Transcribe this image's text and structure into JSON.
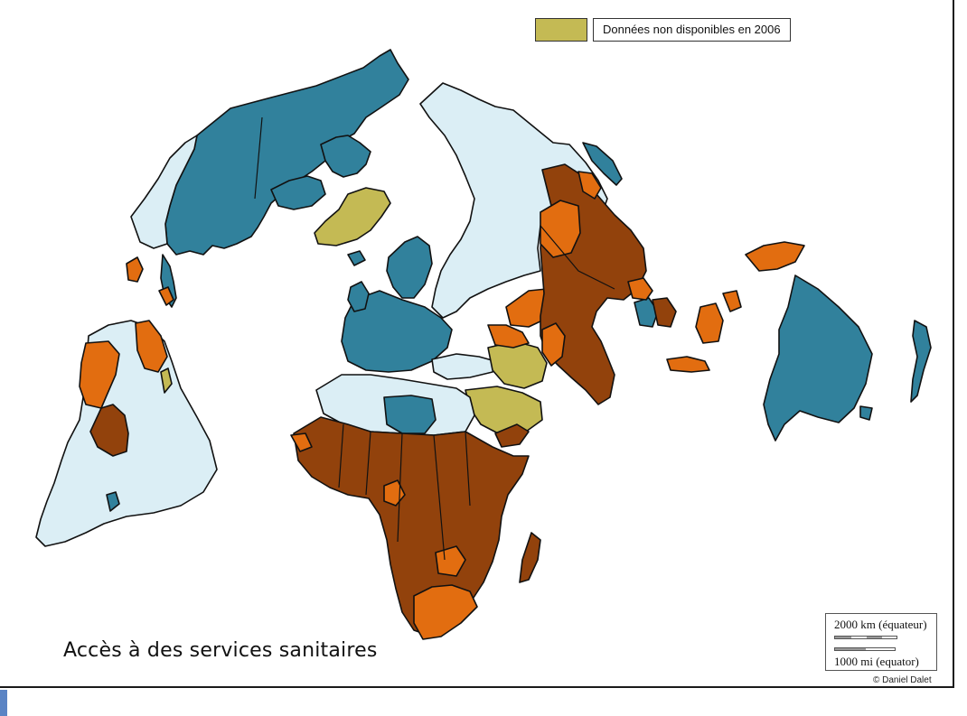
{
  "title": "Accès à des services sanitaires",
  "legend": {
    "label": "Données non disponibles en 2006",
    "color": "#c4ba54"
  },
  "colors": {
    "light": "#dbeef5",
    "teal": "#31819c",
    "orange": "#e26d10",
    "brown": "#92420c",
    "olive": "#c4ba54"
  },
  "scale": {
    "km_label": "2000 km (équateur)",
    "mi_label": "1000 mi (equator)"
  },
  "copyright": "© Daniel Dalet"
}
